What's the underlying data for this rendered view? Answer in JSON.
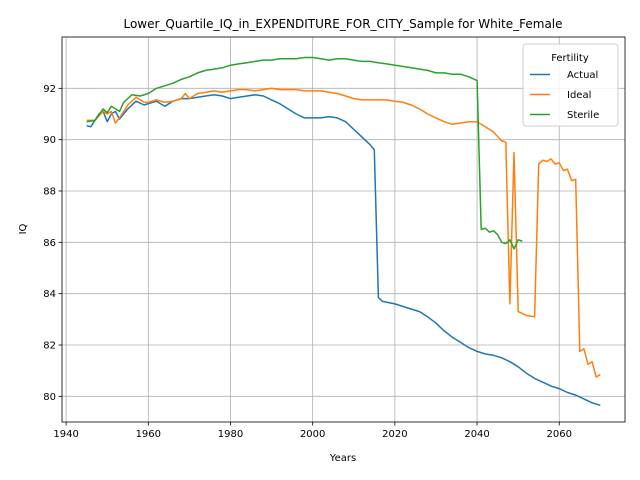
{
  "chart_data": {
    "type": "line",
    "title": "Lower_Quartile_IQ_in_EXPENDITURE_FOR_CITY_Sample for White_Female",
    "xlabel": "Years",
    "ylabel": "IQ",
    "xlim": [
      1939,
      2076
    ],
    "ylim": [
      79.0,
      94.0
    ],
    "xticks": [
      1940,
      1960,
      1980,
      2000,
      2020,
      2040,
      2060
    ],
    "yticks": [
      80,
      82,
      84,
      86,
      88,
      90,
      92
    ],
    "grid": true,
    "legend": {
      "title": "Fertility",
      "placement": "top-right"
    },
    "series": [
      {
        "name": "Actual",
        "color": "#1f77b4",
        "points": [
          [
            1945,
            90.55
          ],
          [
            1946,
            90.5
          ],
          [
            1948,
            91.0
          ],
          [
            1949,
            91.1
          ],
          [
            1950,
            90.7
          ],
          [
            1951,
            91.0
          ],
          [
            1952,
            91.1
          ],
          [
            1953,
            90.8
          ],
          [
            1954,
            91.0
          ],
          [
            1955,
            91.2
          ],
          [
            1957,
            91.5
          ],
          [
            1959,
            91.35
          ],
          [
            1960,
            91.4
          ],
          [
            1962,
            91.5
          ],
          [
            1964,
            91.3
          ],
          [
            1966,
            91.5
          ],
          [
            1968,
            91.6
          ],
          [
            1970,
            91.6
          ],
          [
            1972,
            91.65
          ],
          [
            1974,
            91.7
          ],
          [
            1976,
            91.75
          ],
          [
            1978,
            91.7
          ],
          [
            1980,
            91.6
          ],
          [
            1982,
            91.65
          ],
          [
            1984,
            91.7
          ],
          [
            1986,
            91.75
          ],
          [
            1988,
            91.7
          ],
          [
            1990,
            91.55
          ],
          [
            1992,
            91.4
          ],
          [
            1994,
            91.2
          ],
          [
            1996,
            91.0
          ],
          [
            1998,
            90.85
          ],
          [
            2000,
            90.85
          ],
          [
            2002,
            90.85
          ],
          [
            2004,
            90.9
          ],
          [
            2006,
            90.85
          ],
          [
            2008,
            90.7
          ],
          [
            2010,
            90.4
          ],
          [
            2012,
            90.1
          ],
          [
            2014,
            89.8
          ],
          [
            2015,
            89.6
          ],
          [
            2016,
            83.85
          ],
          [
            2017,
            83.7
          ],
          [
            2020,
            83.6
          ],
          [
            2024,
            83.4
          ],
          [
            2026,
            83.3
          ],
          [
            2028,
            83.1
          ],
          [
            2030,
            82.85
          ],
          [
            2032,
            82.55
          ],
          [
            2034,
            82.3
          ],
          [
            2036,
            82.1
          ],
          [
            2038,
            81.9
          ],
          [
            2040,
            81.75
          ],
          [
            2042,
            81.65
          ],
          [
            2044,
            81.6
          ],
          [
            2046,
            81.5
          ],
          [
            2048,
            81.35
          ],
          [
            2050,
            81.15
          ],
          [
            2052,
            80.9
          ],
          [
            2054,
            80.7
          ],
          [
            2056,
            80.55
          ],
          [
            2058,
            80.4
          ],
          [
            2060,
            80.3
          ],
          [
            2062,
            80.15
          ],
          [
            2064,
            80.05
          ],
          [
            2066,
            79.9
          ],
          [
            2068,
            79.75
          ],
          [
            2070,
            79.65
          ]
        ]
      },
      {
        "name": "Ideal",
        "color": "#ff7f0e",
        "points": [
          [
            1945,
            90.75
          ],
          [
            1947,
            90.75
          ],
          [
            1949,
            91.1
          ],
          [
            1950,
            91.0
          ],
          [
            1951,
            91.1
          ],
          [
            1952,
            90.65
          ],
          [
            1953,
            90.85
          ],
          [
            1955,
            91.35
          ],
          [
            1957,
            91.65
          ],
          [
            1959,
            91.45
          ],
          [
            1960,
            91.45
          ],
          [
            1962,
            91.55
          ],
          [
            1964,
            91.45
          ],
          [
            1966,
            91.5
          ],
          [
            1968,
            91.6
          ],
          [
            1969,
            91.8
          ],
          [
            1970,
            91.6
          ],
          [
            1972,
            91.8
          ],
          [
            1974,
            91.85
          ],
          [
            1976,
            91.9
          ],
          [
            1978,
            91.85
          ],
          [
            1980,
            91.9
          ],
          [
            1982,
            91.95
          ],
          [
            1984,
            91.95
          ],
          [
            1986,
            91.9
          ],
          [
            1988,
            91.95
          ],
          [
            1990,
            92.0
          ],
          [
            1992,
            91.95
          ],
          [
            1994,
            91.95
          ],
          [
            1996,
            91.95
          ],
          [
            1998,
            91.9
          ],
          [
            2000,
            91.9
          ],
          [
            2002,
            91.9
          ],
          [
            2004,
            91.85
          ],
          [
            2006,
            91.8
          ],
          [
            2008,
            91.7
          ],
          [
            2010,
            91.6
          ],
          [
            2012,
            91.55
          ],
          [
            2014,
            91.55
          ],
          [
            2016,
            91.55
          ],
          [
            2018,
            91.55
          ],
          [
            2020,
            91.5
          ],
          [
            2022,
            91.45
          ],
          [
            2024,
            91.35
          ],
          [
            2026,
            91.2
          ],
          [
            2028,
            91.0
          ],
          [
            2030,
            90.85
          ],
          [
            2032,
            90.7
          ],
          [
            2034,
            90.6
          ],
          [
            2036,
            90.65
          ],
          [
            2038,
            90.7
          ],
          [
            2040,
            90.7
          ],
          [
            2042,
            90.5
          ],
          [
            2044,
            90.3
          ],
          [
            2046,
            89.95
          ],
          [
            2047,
            89.9
          ],
          [
            2048,
            83.6
          ],
          [
            2049,
            89.5
          ],
          [
            2050,
            83.3
          ],
          [
            2052,
            83.15
          ],
          [
            2054,
            83.1
          ],
          [
            2055,
            89.05
          ],
          [
            2056,
            89.2
          ],
          [
            2057,
            89.15
          ],
          [
            2058,
            89.25
          ],
          [
            2059,
            89.05
          ],
          [
            2060,
            89.1
          ],
          [
            2061,
            88.8
          ],
          [
            2062,
            88.85
          ],
          [
            2063,
            88.4
          ],
          [
            2064,
            88.45
          ],
          [
            2065,
            81.75
          ],
          [
            2066,
            81.85
          ],
          [
            2067,
            81.25
          ],
          [
            2068,
            81.35
          ],
          [
            2069,
            80.75
          ],
          [
            2070,
            80.85
          ]
        ]
      },
      {
        "name": "Sterile",
        "color": "#2ca02c",
        "points": [
          [
            1945,
            90.7
          ],
          [
            1947,
            90.75
          ],
          [
            1949,
            91.2
          ],
          [
            1950,
            91.05
          ],
          [
            1951,
            91.3
          ],
          [
            1953,
            91.1
          ],
          [
            1954,
            91.45
          ],
          [
            1956,
            91.75
          ],
          [
            1958,
            91.7
          ],
          [
            1960,
            91.8
          ],
          [
            1962,
            92.0
          ],
          [
            1964,
            92.1
          ],
          [
            1966,
            92.2
          ],
          [
            1968,
            92.35
          ],
          [
            1970,
            92.45
          ],
          [
            1972,
            92.6
          ],
          [
            1974,
            92.7
          ],
          [
            1976,
            92.75
          ],
          [
            1978,
            92.8
          ],
          [
            1980,
            92.9
          ],
          [
            1982,
            92.95
          ],
          [
            1984,
            93.0
          ],
          [
            1986,
            93.05
          ],
          [
            1988,
            93.1
          ],
          [
            1990,
            93.1
          ],
          [
            1992,
            93.15
          ],
          [
            1994,
            93.15
          ],
          [
            1996,
            93.15
          ],
          [
            1998,
            93.2
          ],
          [
            2000,
            93.2
          ],
          [
            2002,
            93.15
          ],
          [
            2004,
            93.1
          ],
          [
            2006,
            93.15
          ],
          [
            2008,
            93.15
          ],
          [
            2010,
            93.1
          ],
          [
            2012,
            93.05
          ],
          [
            2014,
            93.05
          ],
          [
            2016,
            93.0
          ],
          [
            2018,
            92.95
          ],
          [
            2020,
            92.9
          ],
          [
            2022,
            92.85
          ],
          [
            2024,
            92.8
          ],
          [
            2026,
            92.75
          ],
          [
            2028,
            92.7
          ],
          [
            2030,
            92.6
          ],
          [
            2032,
            92.6
          ],
          [
            2034,
            92.55
          ],
          [
            2036,
            92.55
          ],
          [
            2038,
            92.45
          ],
          [
            2040,
            92.3
          ],
          [
            2041,
            86.5
          ],
          [
            2042,
            86.55
          ],
          [
            2043,
            86.4
          ],
          [
            2044,
            86.45
          ],
          [
            2045,
            86.3
          ],
          [
            2046,
            86.0
          ],
          [
            2047,
            85.95
          ],
          [
            2048,
            86.1
          ],
          [
            2049,
            85.75
          ],
          [
            2050,
            86.1
          ],
          [
            2051,
            86.05
          ]
        ]
      }
    ]
  }
}
